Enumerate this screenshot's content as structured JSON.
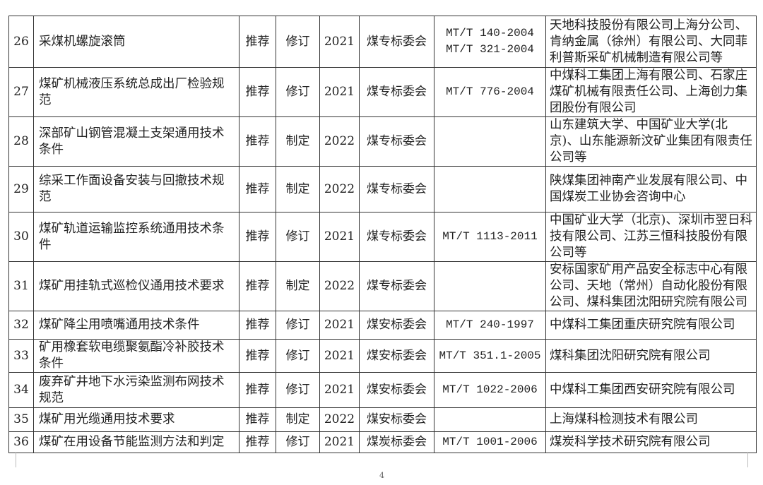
{
  "rows": [
    {
      "no": "26",
      "name": "采煤机螺旋滚筒",
      "type": "推荐",
      "kind": "修订",
      "year": "2021",
      "committee": "煤专标委会",
      "replaces": "MT/T 140-2004\nMT/T 321-2004",
      "units": "天地科技股份有限公司上海分公司、肯纳金属（徐州）有限公司、大同菲利普斯采矿机械制造有限公司等"
    },
    {
      "no": "27",
      "name": "煤矿机械液压系统总成出厂检验规范",
      "type": "推荐",
      "kind": "修订",
      "year": "2021",
      "committee": "煤专标委会",
      "replaces": "MT/T 776-2004",
      "units": "中煤科工集团上海有限公司、石家庄煤矿机械有限责任公司、上海创力集团股份有限公司"
    },
    {
      "no": "28",
      "name": "深部矿山钢管混凝土支架通用技术条件",
      "type": "推荐",
      "kind": "制定",
      "year": "2022",
      "committee": "煤专标委会",
      "replaces": "",
      "units": "山东建筑大学、中国矿业大学(北京)、山东能源新汶矿业集团有限责任公司等"
    },
    {
      "no": "29",
      "name": "综采工作面设备安装与回撤技术规范",
      "type": "推荐",
      "kind": "制定",
      "year": "2022",
      "committee": "煤专标委会",
      "replaces": "",
      "units": "陕煤集团神南产业发展有限公司、中国煤炭工业协会咨询中心"
    },
    {
      "no": "30",
      "name": "煤矿轨道运输监控系统通用技术条件",
      "type": "推荐",
      "kind": "修订",
      "year": "2021",
      "committee": "煤专标委会",
      "replaces": "MT/T 1113-2011",
      "units": "中国矿业大学（北京)、深圳市翌日科技有限公司、江苏三恒科技股份有限公司等"
    },
    {
      "no": "31",
      "name": "煤矿用挂轨式巡检仪通用技术要求",
      "type": "推荐",
      "kind": "制定",
      "year": "2022",
      "committee": "煤专标委会",
      "replaces": "",
      "units": "安标国家矿用产品安全标志中心有限公司、天地（常州）自动化股份有限公司、煤科集团沈阳研究院有限公司"
    },
    {
      "no": "32",
      "name": "煤矿降尘用喷嘴通用技术条件",
      "type": "推荐",
      "kind": "修订",
      "year": "2021",
      "committee": "煤安标委会",
      "replaces": "MT/T 240-1997",
      "units": "中煤科工集团重庆研究院有限公司"
    },
    {
      "no": "33",
      "name": "矿用橡套软电缆聚氨酯冷补胶技术条件",
      "type": "推荐",
      "kind": "修订",
      "year": "2021",
      "committee": "煤安标委会",
      "replaces": "MT/T 351.1-2005",
      "units": "煤科集团沈阳研究院有限公司"
    },
    {
      "no": "34",
      "name": "废弃矿井地下水污染监测布网技术规范",
      "type": "推荐",
      "kind": "修订",
      "year": "2021",
      "committee": "煤安标委会",
      "replaces": "MT/T 1022-2006",
      "units": "中煤科工集团西安研究院有限公司"
    },
    {
      "no": "35",
      "name": "煤矿用光缆通用技术要求",
      "type": "推荐",
      "kind": "制定",
      "year": "2022",
      "committee": "煤安标委会",
      "replaces": "",
      "units": "上海煤科检测技术有限公司"
    },
    {
      "no": "36",
      "name": "煤矿在用设备节能监测方法和判定",
      "type": "推荐",
      "kind": "修订",
      "year": "2021",
      "committee": "煤炭标委会",
      "replaces": "MT/T 1001-2006",
      "units": "煤炭科学技术研究院有限公司"
    }
  ],
  "page_number": "4"
}
